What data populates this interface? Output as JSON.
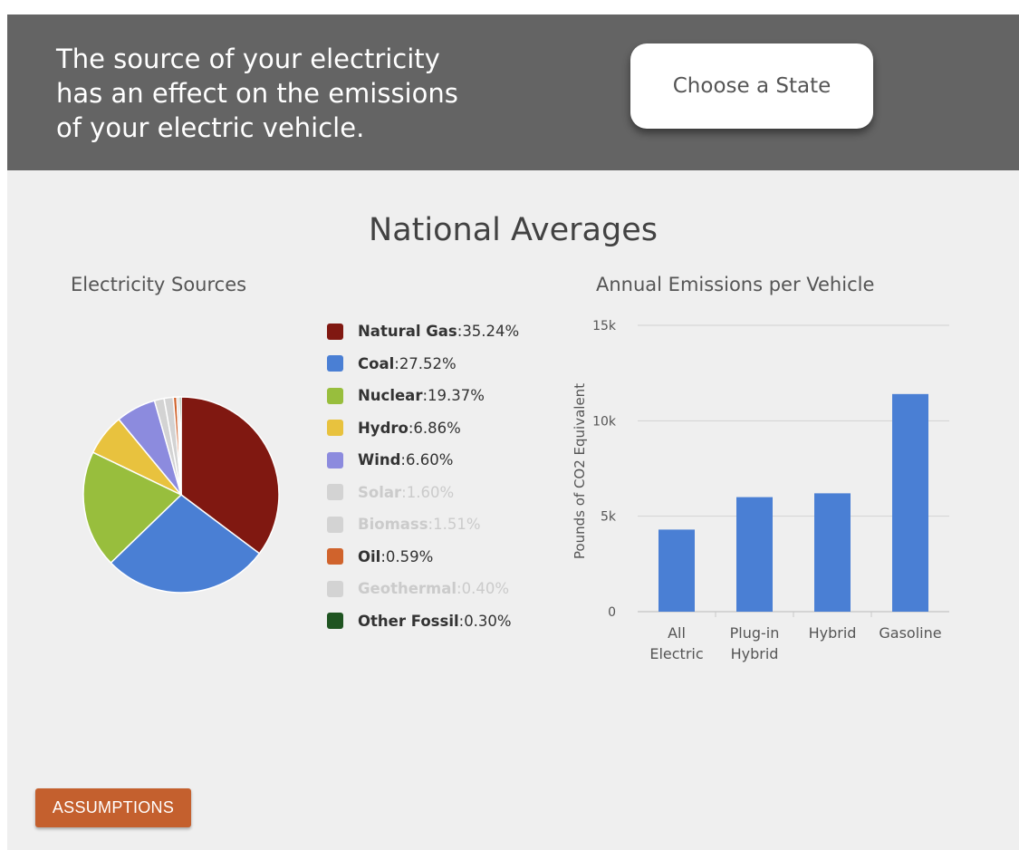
{
  "header": {
    "intro_lines": [
      "The source of your electricity",
      "has an effect on the emissions",
      "of your electric vehicle."
    ],
    "state_button_label": "Choose a State"
  },
  "main": {
    "title": "National Averages",
    "assumptions_label": "ASSUMPTIONS"
  },
  "chart_data": [
    {
      "type": "pie",
      "title": "Electricity Sources",
      "legend_position": "right",
      "slices": [
        {
          "label": "Natural Gas",
          "value": 35.24,
          "value_text": "35.24%",
          "color": "#801811",
          "muted": false
        },
        {
          "label": "Coal",
          "value": 27.52,
          "value_text": "27.52%",
          "color": "#4a7fd4",
          "muted": false
        },
        {
          "label": "Nuclear",
          "value": 19.37,
          "value_text": "19.37%",
          "color": "#98be3d",
          "muted": false
        },
        {
          "label": "Hydro",
          "value": 6.86,
          "value_text": "6.86%",
          "color": "#e8c23e",
          "muted": false
        },
        {
          "label": "Wind",
          "value": 6.6,
          "value_text": "6.60%",
          "color": "#8c8bde",
          "muted": false
        },
        {
          "label": "Solar",
          "value": 1.6,
          "value_text": "1.60%",
          "color": "#d3d3d3",
          "muted": true
        },
        {
          "label": "Biomass",
          "value": 1.51,
          "value_text": "1.51%",
          "color": "#d3d3d3",
          "muted": true
        },
        {
          "label": "Oil",
          "value": 0.59,
          "value_text": "0.59%",
          "color": "#d0632c",
          "muted": false
        },
        {
          "label": "Geothermal",
          "value": 0.4,
          "value_text": "0.40%",
          "color": "#d3d3d3",
          "muted": true
        },
        {
          "label": "Other Fossil",
          "value": 0.3,
          "value_text": "0.30%",
          "color": "#1f5421",
          "muted": false
        }
      ]
    },
    {
      "type": "bar",
      "title": "Annual Emissions per Vehicle",
      "ylabel": "Pounds of CO2 Equivalent",
      "xlabel": "",
      "categories": [
        [
          "All",
          "Electric"
        ],
        [
          "Plug-in",
          "Hybrid"
        ],
        [
          "Hybrid"
        ],
        [
          "Gasoline"
        ]
      ],
      "values": [
        4300,
        6000,
        6200,
        11400
      ],
      "ylim": [
        0,
        15000
      ],
      "yticks": [
        {
          "value": 0,
          "label": "0"
        },
        {
          "value": 5000,
          "label": "5k"
        },
        {
          "value": 10000,
          "label": "10k"
        },
        {
          "value": 15000,
          "label": "15k"
        }
      ],
      "grid": true,
      "bar_color": "#4a7fd4"
    }
  ]
}
